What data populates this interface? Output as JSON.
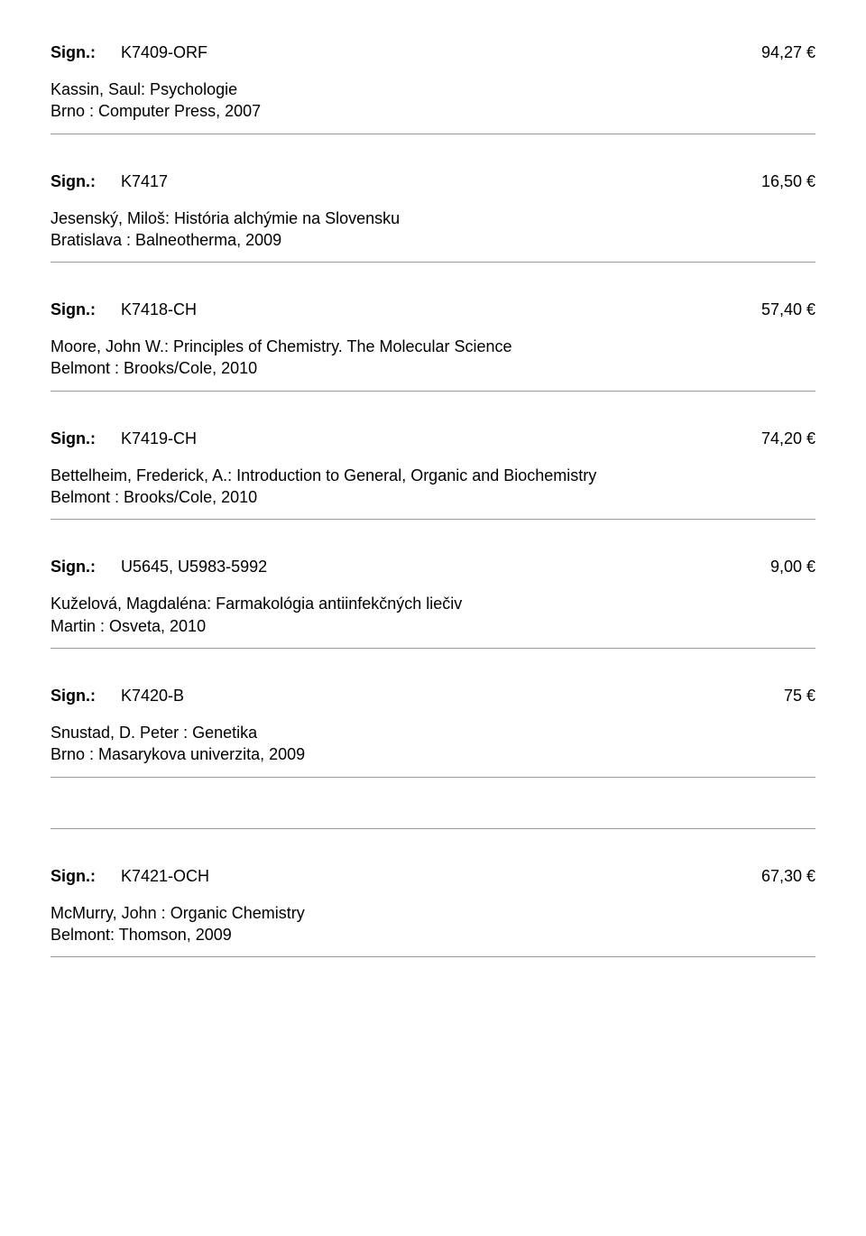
{
  "sign_label": "Sign.:",
  "entries": [
    {
      "code": "K7409-ORF",
      "price": "94,27 €",
      "line1": "Kassin, Saul: Psychologie",
      "line2": "Brno : Computer Press, 2007"
    },
    {
      "code": "K7417",
      "price": "16,50 €",
      "line1": "Jesenský, Miloš: História alchýmie na Slovensku",
      "line2": "Bratislava : Balneotherma, 2009"
    },
    {
      "code": "K7418-CH",
      "price": "57,40 €",
      "line1": "Moore, John W.: Principles of Chemistry. The Molecular Science",
      "line2": "Belmont : Brooks/Cole, 2010"
    },
    {
      "code": "K7419-CH",
      "price": "74,20 €",
      "line1": "Bettelheim, Frederick, A.: Introduction to General, Organic and Biochemistry",
      "line2": "Belmont : Brooks/Cole, 2010"
    },
    {
      "code": "U5645, U5983-5992",
      "price": "9,00 €",
      "line1": "Kuželová, Magdaléna: Farmakológia antiinfekčných liečiv",
      "line2": "Martin : Osveta, 2010"
    },
    {
      "code": "K7420-B",
      "price": "75 €",
      "line1": "Snustad, D. Peter : Genetika",
      "line2": "Brno : Masarykova univerzita, 2009",
      "double_rule": true
    },
    {
      "code": "K7421-OCH",
      "price": "67,30 €",
      "line1": "McMurry, John : Organic Chemistry",
      "line2": "Belmont: Thomson, 2009"
    }
  ],
  "colors": {
    "text": "#000000",
    "rule": "#9a9a99",
    "background": "#ffffff"
  }
}
